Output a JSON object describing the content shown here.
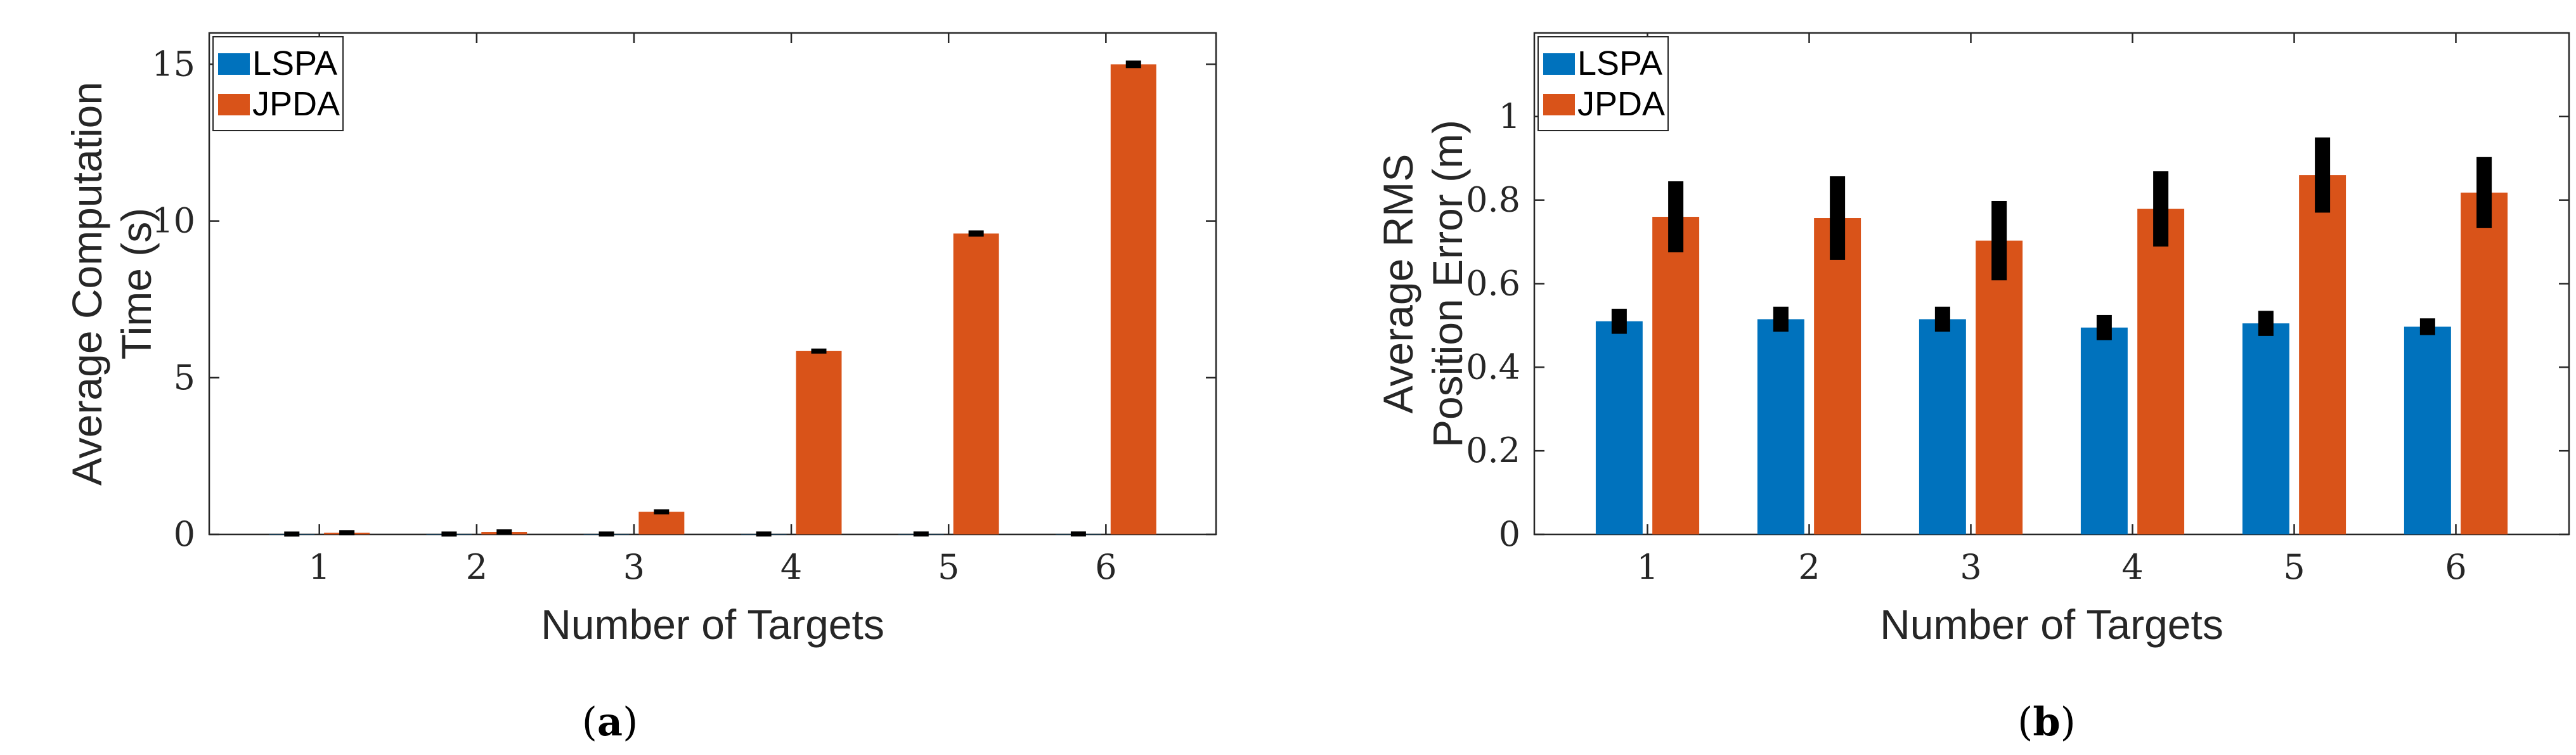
{
  "chart_data": [
    {
      "type": "bar",
      "panel_label": "(a)",
      "caption_letter": "a",
      "xlabel": "Number of Targets",
      "ylabel_lines": [
        "Average Computation",
        "Time (s)"
      ],
      "categories": [
        "1",
        "2",
        "3",
        "4",
        "5",
        "6"
      ],
      "ylim": [
        0,
        16
      ],
      "yticks": [
        0,
        5,
        10,
        15
      ],
      "ytick_labels": [
        "0",
        "5",
        "10",
        "15"
      ],
      "legend_position": "top-left",
      "series": [
        {
          "name": "LSPA",
          "color": "#0072BD",
          "values": [
            0.002,
            0.003,
            0.004,
            0.005,
            0.006,
            0.007
          ],
          "errors": [
            0.02,
            0.02,
            0.02,
            0.02,
            0.02,
            0.02
          ]
        },
        {
          "name": "JPDA",
          "color": "#D95319",
          "values": [
            0.05,
            0.08,
            0.72,
            5.85,
            9.6,
            15.0
          ],
          "errors": [
            0.06,
            0.06,
            0.08,
            0.08,
            0.1,
            0.12
          ]
        }
      ]
    },
    {
      "type": "bar",
      "panel_label": "(b)",
      "caption_letter": "b",
      "xlabel": "Number of Targets",
      "ylabel_lines": [
        "Average RMS",
        "Position Error (m)"
      ],
      "categories": [
        "1",
        "2",
        "3",
        "4",
        "5",
        "6"
      ],
      "ylim": [
        0,
        1.2
      ],
      "yticks": [
        0,
        0.2,
        0.4,
        0.6,
        0.8,
        1
      ],
      "ytick_labels": [
        "0",
        "0.2",
        "0.4",
        "0.6",
        "0.8",
        "1"
      ],
      "legend_position": "top-left",
      "series": [
        {
          "name": "LSPA",
          "color": "#0072BD",
          "values": [
            0.51,
            0.515,
            0.515,
            0.495,
            0.505,
            0.497
          ],
          "errors": [
            0.03,
            0.03,
            0.03,
            0.03,
            0.03,
            0.02
          ]
        },
        {
          "name": "JPDA",
          "color": "#D95319",
          "values": [
            0.76,
            0.757,
            0.703,
            0.779,
            0.86,
            0.818
          ],
          "errors": [
            0.085,
            0.1,
            0.095,
            0.09,
            0.09,
            0.085
          ]
        }
      ]
    }
  ]
}
